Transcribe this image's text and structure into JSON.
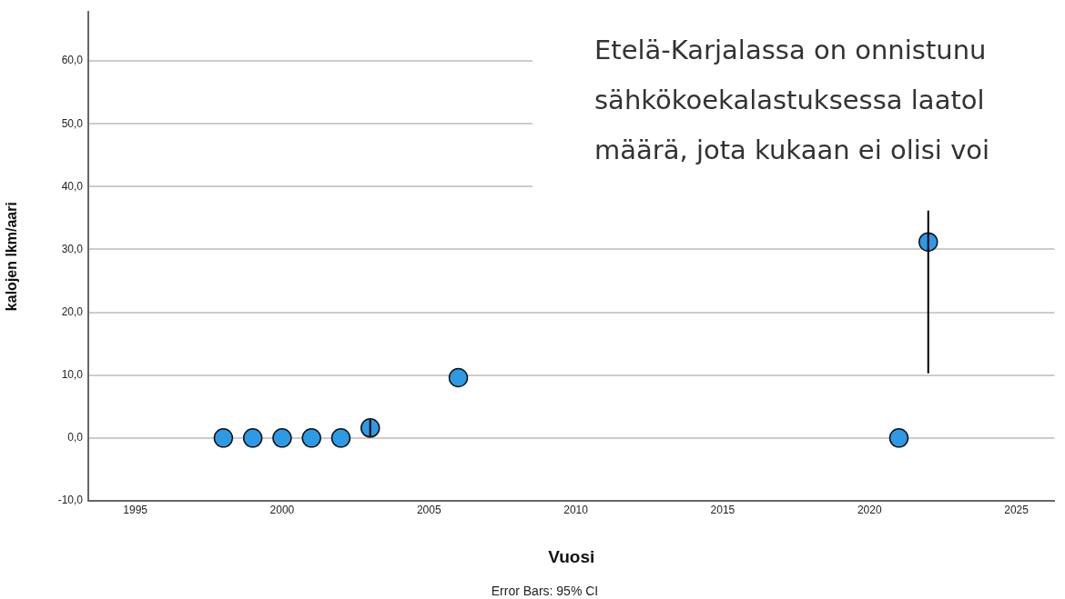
{
  "chart_data": {
    "type": "scatter",
    "xlabel": "Vuosi",
    "ylabel": "kalojen lkm/aari",
    "annotations": [
      "Error Bars: 95% CI",
      "Etelä-Karjalassa on onnistunu",
      "sähkökoekalastuksessa laatol",
      "määrä, jota kukaan ei olisi voi"
    ],
    "x": [
      1998,
      1999,
      2000,
      2001,
      2002,
      2003,
      2006,
      2021,
      2022
    ],
    "values": [
      0,
      0,
      0,
      0,
      0,
      1.6,
      9.6,
      0,
      31.2
    ],
    "errors": [
      null,
      null,
      null,
      null,
      null,
      [
        0.3,
        2.9
      ],
      null,
      null,
      [
        10.3,
        36.2
      ]
    ],
    "color": "#2e9ae6",
    "marker": "circle",
    "xlim": [
      1993.4,
      2026.3
    ],
    "xticks": [
      1995,
      2000,
      2005,
      2010,
      2015,
      2020,
      2025
    ],
    "ylim": [
      -10,
      67.8
    ],
    "yticks": [
      {
        "value": -10,
        "label": "-10,0"
      },
      {
        "value": 0,
        "label": "0,0"
      },
      {
        "value": 10,
        "label": "10,0"
      },
      {
        "value": 20,
        "label": "20,0"
      },
      {
        "value": 30,
        "label": "30,0"
      },
      {
        "value": 40,
        "label": "40,0"
      },
      {
        "value": 50,
        "label": "50,0"
      },
      {
        "value": 60,
        "label": "60,0"
      }
    ],
    "grid": "y"
  }
}
